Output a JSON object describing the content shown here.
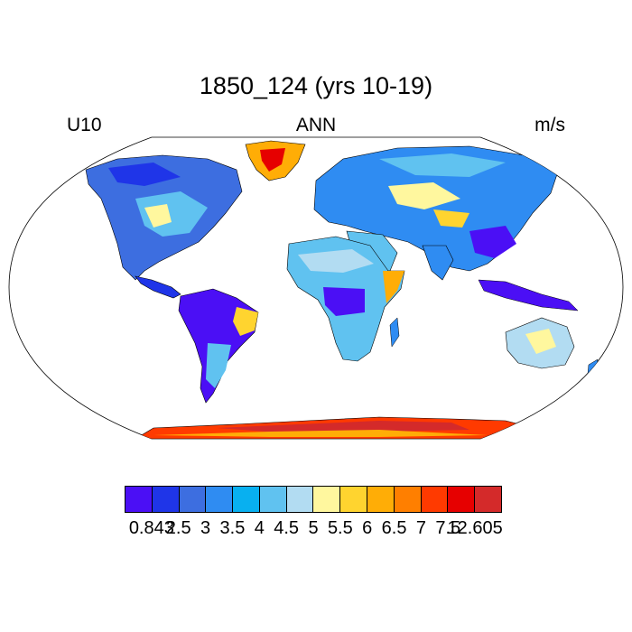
{
  "title": "1850_124 (yrs 10-19)",
  "left_label": "U10",
  "center_label": "ANN",
  "right_label": "m/s",
  "map": {
    "projection": "robinson",
    "field_name": "U10",
    "units": "m/s",
    "land_only": true,
    "coastlines": true,
    "regions": [
      {
        "name": "Greenland",
        "value_class": "high"
      },
      {
        "name": "Antarctica",
        "value_class": "high"
      },
      {
        "name": "Amazon",
        "value_class": "low"
      },
      {
        "name": "Congo",
        "value_class": "low"
      },
      {
        "name": "Indonesia",
        "value_class": "low"
      },
      {
        "name": "Horn of Africa",
        "value_class": "high"
      }
    ]
  },
  "colorbar": {
    "colors": [
      "#4b0ff5",
      "#1f35e8",
      "#3d6ee0",
      "#2f8cf2",
      "#08b0f0",
      "#60c2f0",
      "#b2dcf2",
      "#fff79e",
      "#ffd42f",
      "#ffad06",
      "#ff7f00",
      "#ff3a00",
      "#e60000",
      "#d42a2a"
    ],
    "labels": [
      "0.843",
      "2.5",
      "3",
      "3.5",
      "4",
      "4.5",
      "5",
      "5.5",
      "6",
      "6.5",
      "7",
      "7.5",
      "12.605"
    ]
  }
}
